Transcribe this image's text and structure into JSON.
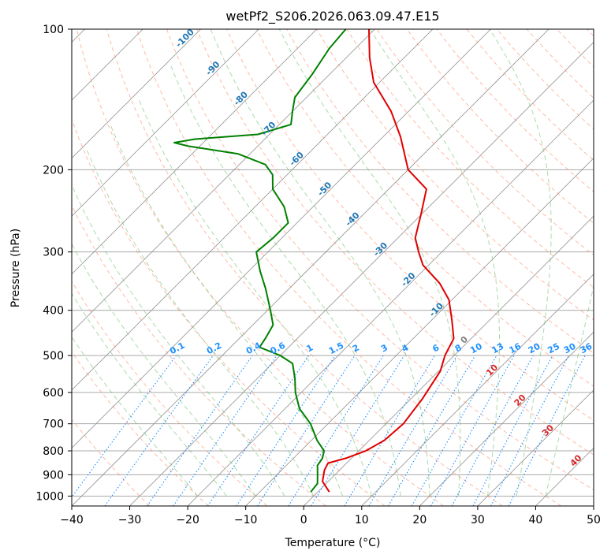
{
  "chart_data": {
    "type": "line",
    "subtype": "skew-T log-P diagram",
    "title": "wetPf2_S206.2026.063.09.47.E15",
    "xlabel": "Temperature (°C)",
    "ylabel": "Pressure (hPa)",
    "xlim": [
      -40,
      50
    ],
    "ylim": [
      1050,
      100
    ],
    "y_scale": "log",
    "x_ticks": [
      -40,
      -30,
      -20,
      -10,
      0,
      10,
      20,
      30,
      40,
      50
    ],
    "y_ticks": [
      100,
      200,
      300,
      400,
      500,
      600,
      700,
      800,
      900,
      1000
    ],
    "grid": "pressure gridlines (gray horizontal) and skewed isotherms (gray diagonal)",
    "series": [
      {
        "role": "temperature",
        "color": "#e00000",
        "points": [
          {
            "p": 980,
            "t": 2.0
          },
          {
            "p": 930,
            "t": -1.0
          },
          {
            "p": 880,
            "t": -2.6
          },
          {
            "p": 850,
            "t": -3.2
          },
          {
            "p": 830,
            "t": -1.0
          },
          {
            "p": 800,
            "t": 1.2
          },
          {
            "p": 760,
            "t": 2.6
          },
          {
            "p": 700,
            "t": 3.0
          },
          {
            "p": 620,
            "t": 2.0
          },
          {
            "p": 540,
            "t": 0.3
          },
          {
            "p": 500,
            "t": -1.6
          },
          {
            "p": 460,
            "t": -3.0
          },
          {
            "p": 420,
            "t": -6.5
          },
          {
            "p": 380,
            "t": -10.5
          },
          {
            "p": 350,
            "t": -15.0
          },
          {
            "p": 320,
            "t": -21.0
          },
          {
            "p": 300,
            "t": -24.0
          },
          {
            "p": 280,
            "t": -27.0
          },
          {
            "p": 250,
            "t": -30.0
          },
          {
            "p": 220,
            "t": -33.5
          },
          {
            "p": 200,
            "t": -40.0
          },
          {
            "p": 170,
            "t": -47.0
          },
          {
            "p": 150,
            "t": -53.0
          },
          {
            "p": 130,
            "t": -61.0
          },
          {
            "p": 115,
            "t": -66.0
          },
          {
            "p": 100,
            "t": -71.0
          }
        ]
      },
      {
        "role": "dewpoint",
        "color": "#008000",
        "points": [
          {
            "p": 980,
            "t": -1.2
          },
          {
            "p": 940,
            "t": -1.5
          },
          {
            "p": 900,
            "t": -3.0
          },
          {
            "p": 860,
            "t": -4.6
          },
          {
            "p": 830,
            "t": -5.0
          },
          {
            "p": 800,
            "t": -6.0
          },
          {
            "p": 760,
            "t": -9.0
          },
          {
            "p": 700,
            "t": -13.0
          },
          {
            "p": 650,
            "t": -17.5
          },
          {
            "p": 600,
            "t": -21.0
          },
          {
            "p": 560,
            "t": -23.5
          },
          {
            "p": 520,
            "t": -26.5
          },
          {
            "p": 500,
            "t": -30.0
          },
          {
            "p": 480,
            "t": -35.0
          },
          {
            "p": 460,
            "t": -35.5
          },
          {
            "p": 430,
            "t": -36.5
          },
          {
            "p": 400,
            "t": -39.5
          },
          {
            "p": 360,
            "t": -44.0
          },
          {
            "p": 330,
            "t": -48.0
          },
          {
            "p": 300,
            "t": -52.0
          },
          {
            "p": 280,
            "t": -51.5
          },
          {
            "p": 260,
            "t": -51.5
          },
          {
            "p": 240,
            "t": -55.0
          },
          {
            "p": 220,
            "t": -60.0
          },
          {
            "p": 205,
            "t": -62.5
          },
          {
            "p": 195,
            "t": -65.5
          },
          {
            "p": 185,
            "t": -72.0
          },
          {
            "p": 178,
            "t": -82.0
          },
          {
            "p": 175,
            "t": -85.0
          },
          {
            "p": 172,
            "t": -82.0
          },
          {
            "p": 168,
            "t": -72.0
          },
          {
            "p": 160,
            "t": -68.0
          },
          {
            "p": 150,
            "t": -70.0
          },
          {
            "p": 140,
            "t": -72.0
          },
          {
            "p": 125,
            "t": -73.0
          },
          {
            "p": 110,
            "t": -74.5
          },
          {
            "p": 100,
            "t": -75.0
          }
        ]
      }
    ],
    "mixing_ratio_labels": [
      "0.1",
      "0.2",
      "0.4",
      "0.6",
      "1",
      "1.5",
      "2",
      "3",
      "4",
      "6",
      "8",
      "10",
      "13",
      "16",
      "20",
      "25",
      "30",
      "36"
    ],
    "isotherm_labels": [
      "-100",
      "-90",
      "-80",
      "-70",
      "-60",
      "-50",
      "-40",
      "-30",
      "-20",
      "-10",
      "0",
      "10",
      "20",
      "30",
      "40"
    ],
    "colors": {
      "temperature": "#e00000",
      "dewpoint": "#008000",
      "isotherm_label_cold": "#1f77b4",
      "isotherm_label_zero": "#808080",
      "isotherm_label_warm": "#d62728",
      "mixing_ratio": "#1e90ff",
      "dry_adiabat": "#ff8c69",
      "moist_adiabat": "#66bb66",
      "skewed_isotherm": "#909090",
      "grid": "#a8a8a8"
    }
  }
}
